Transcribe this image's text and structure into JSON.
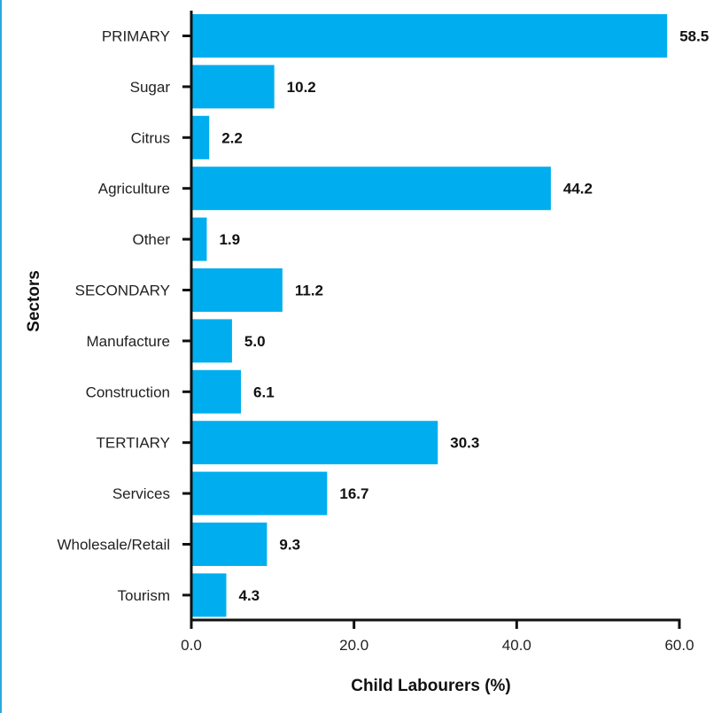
{
  "chart_data": {
    "type": "bar",
    "orientation": "horizontal",
    "categories": [
      "PRIMARY",
      "Sugar",
      "Citrus",
      "Agriculture",
      "Other",
      "SECONDARY",
      "Manufacture",
      "Construction",
      "TERTIARY",
      "Services",
      "Wholesale/Retail",
      "Tourism"
    ],
    "values": [
      58.5,
      10.2,
      2.2,
      44.2,
      1.9,
      11.2,
      5.0,
      6.1,
      30.3,
      16.7,
      9.3,
      4.3
    ],
    "value_labels": [
      "58.5",
      "10.2",
      "2.2",
      "44.2",
      "1.9",
      "11.2",
      "5.0",
      "6.1",
      "30.3",
      "16.7",
      "9.3",
      "4.3"
    ],
    "xlabel": "Child Labourers (%)",
    "ylabel": "Sectors",
    "xlim": [
      0,
      60
    ],
    "x_ticks": [
      0,
      20,
      40,
      60
    ],
    "x_tick_labels": [
      "0.0",
      "20.0",
      "40.0",
      "60.0"
    ],
    "grid": false,
    "legend": "none",
    "bar_color": "#00aeef",
    "axis_color": "#111111"
  }
}
